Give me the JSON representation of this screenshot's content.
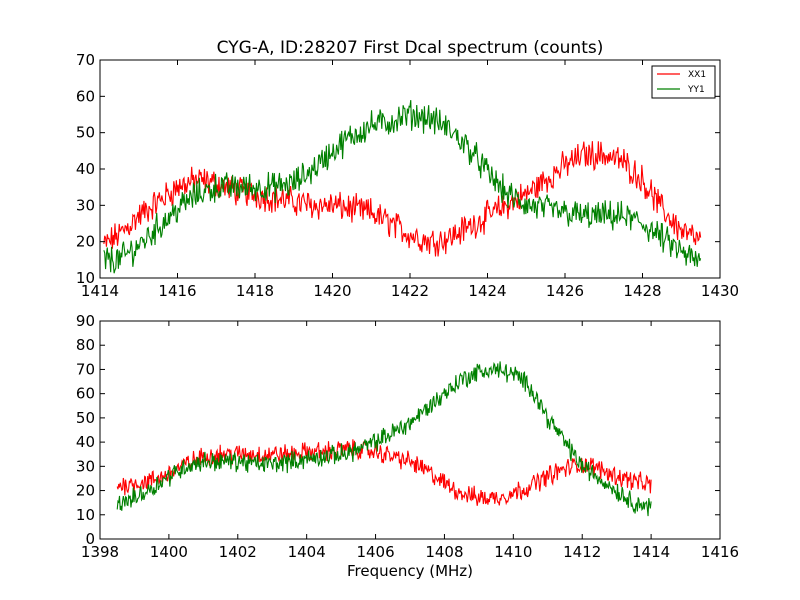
{
  "chart_data": [
    {
      "type": "line",
      "title": "CYG-A, ID:28207 First Dcal spectrum (counts)",
      "xlabel": "",
      "ylabel": "",
      "xlim": [
        1414,
        1430
      ],
      "ylim": [
        10,
        70
      ],
      "xticks": [
        1414,
        1416,
        1418,
        1420,
        1422,
        1424,
        1426,
        1428,
        1430
      ],
      "yticks": [
        10,
        20,
        30,
        40,
        50,
        60,
        70
      ],
      "legend": "top-right",
      "series": [
        {
          "name": "XX1",
          "color": "#ff0000",
          "x": [
            1414.1,
            1414.5,
            1415.0,
            1415.5,
            1416.0,
            1416.5,
            1417.0,
            1417.5,
            1418.0,
            1418.5,
            1419.0,
            1419.5,
            1420.0,
            1420.5,
            1421.0,
            1421.5,
            1422.0,
            1422.5,
            1423.0,
            1423.5,
            1424.0,
            1424.5,
            1425.0,
            1425.5,
            1426.0,
            1426.5,
            1427.0,
            1427.5,
            1428.0,
            1428.5,
            1429.0,
            1429.5
          ],
          "y": [
            19,
            22,
            27,
            31,
            35,
            37,
            36,
            34,
            33,
            32,
            31,
            30,
            30,
            29,
            28,
            25,
            22,
            20,
            21,
            24,
            27,
            30,
            33,
            37,
            41,
            44,
            44,
            42,
            37,
            29,
            23,
            20
          ]
        },
        {
          "name": "YY1",
          "color": "#008000",
          "x": [
            1414.1,
            1414.5,
            1415.0,
            1415.5,
            1416.0,
            1416.5,
            1417.0,
            1417.5,
            1418.0,
            1418.5,
            1419.0,
            1419.5,
            1420.0,
            1420.5,
            1421.0,
            1421.5,
            1422.0,
            1422.5,
            1423.0,
            1423.5,
            1424.0,
            1424.5,
            1425.0,
            1425.5,
            1426.0,
            1426.5,
            1427.0,
            1427.5,
            1428.0,
            1428.5,
            1429.0,
            1429.5
          ],
          "y": [
            15,
            15,
            19,
            24,
            29,
            33,
            35,
            35,
            35,
            35,
            36,
            40,
            45,
            49,
            52,
            53,
            55,
            54,
            51,
            46,
            39,
            33,
            30,
            29,
            28,
            27,
            27,
            27,
            25,
            21,
            17,
            14
          ]
        }
      ]
    },
    {
      "type": "line",
      "title": "",
      "xlabel": "Frequency (MHz)",
      "ylabel": "",
      "xlim": [
        1398,
        1416
      ],
      "ylim": [
        0,
        90
      ],
      "xticks": [
        1398,
        1400,
        1402,
        1404,
        1406,
        1408,
        1410,
        1412,
        1414,
        1416
      ],
      "yticks": [
        0,
        10,
        20,
        30,
        40,
        50,
        60,
        70,
        80,
        90
      ],
      "series": [
        {
          "color": "#ff0000",
          "x": [
            1398.5,
            1399.0,
            1399.5,
            1400.0,
            1400.5,
            1401.0,
            1401.5,
            1402.0,
            1402.5,
            1403.0,
            1403.5,
            1404.0,
            1404.5,
            1405.0,
            1405.5,
            1406.0,
            1406.5,
            1407.0,
            1407.5,
            1408.0,
            1408.5,
            1409.0,
            1409.5,
            1410.0,
            1410.5,
            1411.0,
            1411.5,
            1412.0,
            1412.5,
            1413.0,
            1413.5,
            1414.0
          ],
          "y": [
            22,
            23,
            24,
            27,
            31,
            34,
            35,
            35,
            35,
            35,
            35,
            36,
            36,
            37,
            37,
            36,
            34,
            32,
            28,
            23,
            19,
            17,
            17,
            19,
            22,
            26,
            29,
            31,
            29,
            26,
            24,
            22
          ]
        },
        {
          "color": "#008000",
          "x": [
            1398.5,
            1399.0,
            1399.5,
            1400.0,
            1400.5,
            1401.0,
            1401.5,
            1402.0,
            1402.5,
            1403.0,
            1403.5,
            1404.0,
            1404.5,
            1405.0,
            1405.5,
            1406.0,
            1406.5,
            1407.0,
            1407.5,
            1408.0,
            1408.5,
            1409.0,
            1409.5,
            1410.0,
            1410.5,
            1411.0,
            1411.5,
            1412.0,
            1412.5,
            1413.0,
            1413.5,
            1414.0
          ],
          "y": [
            14,
            17,
            21,
            26,
            30,
            32,
            32,
            32,
            31,
            31,
            32,
            33,
            34,
            35,
            37,
            40,
            44,
            48,
            54,
            60,
            66,
            69,
            70,
            68,
            63,
            50,
            40,
            30,
            25,
            20,
            15,
            13
          ]
        }
      ]
    }
  ]
}
